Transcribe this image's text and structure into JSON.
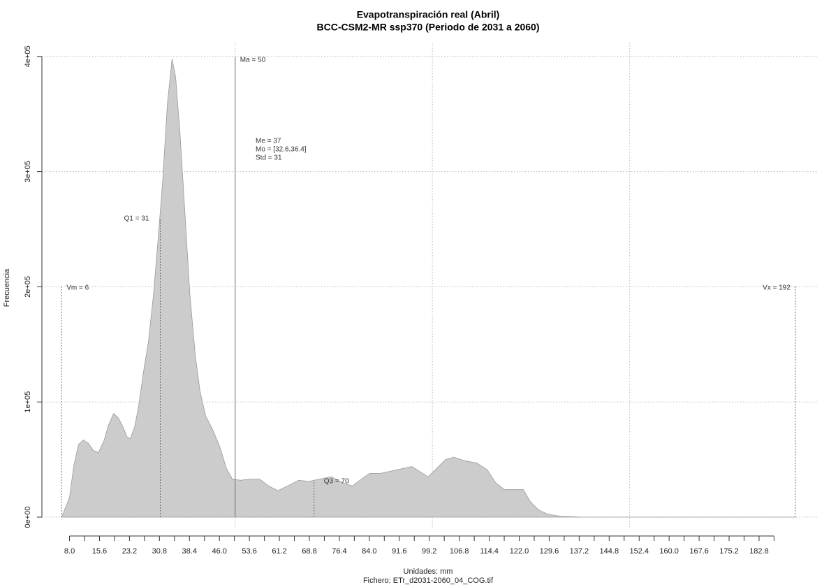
{
  "chart_data": {
    "type": "area",
    "title": "Evapotranspiración real (Abril)",
    "subtitle": "BCC-CSM2-MR ssp370 (Periodo de 2031 a 2060)",
    "xlabel": "Unidades: mm",
    "caption": "Fichero: ETr_d2031-2060_04_COG.tif",
    "ylabel": "Frecuencia",
    "x": [
      6,
      8,
      9.1,
      10.3,
      11.5,
      12.8,
      14,
      15.3,
      16.7,
      17.9,
      19.2,
      20.4,
      21.6,
      22.5,
      23.4,
      24.5,
      25.5,
      26.8,
      28,
      29.3,
      30.5,
      31.6,
      32.8,
      34,
      34.9,
      36,
      37.2,
      38.5,
      39.9,
      41.1,
      42.5,
      44.3,
      46.1,
      47.8,
      49.3,
      51.4,
      53.7,
      56.2,
      58.5,
      60.8,
      63.3,
      66.1,
      68.6,
      71.4,
      74.4,
      77.1,
      79.7,
      82,
      84.1,
      86.8,
      89.5,
      92.2,
      94.8,
      96.6,
      98.9,
      101,
      103.3,
      105.4,
      108.1,
      111.3,
      113.9,
      116,
      118.2,
      120.8,
      123,
      124.9,
      127,
      129.3,
      132.8,
      138.1,
      192
    ],
    "values": [
      0,
      17000,
      45000,
      63000,
      67000,
      64000,
      58000,
      56000,
      66000,
      80000,
      90000,
      86000,
      78000,
      70000,
      68000,
      78000,
      96000,
      127000,
      152000,
      194000,
      243000,
      291000,
      358000,
      398000,
      382000,
      334000,
      267000,
      194000,
      140000,
      109000,
      88000,
      76000,
      61000,
      42000,
      33000,
      32000,
      33000,
      33000,
      27000,
      23000,
      27000,
      32000,
      31000,
      33000,
      35000,
      30000,
      27000,
      33000,
      38000,
      38000,
      40000,
      42000,
      44000,
      40000,
      35000,
      42000,
      50000,
      52000,
      49000,
      47000,
      41000,
      30000,
      24000,
      24000,
      24000,
      13000,
      6000,
      2500,
      600,
      0,
      0
    ],
    "color": "#cccccc",
    "xlim": [
      1,
      197.5
    ],
    "ylim": [
      -10000,
      412000
    ],
    "xticks": [
      {
        "value": 8,
        "label": "8.0"
      },
      15.6,
      23.2,
      30.8,
      38.4,
      {
        "value": 46,
        "label": "46.0"
      },
      53.6,
      61.2,
      68.8,
      76.4,
      {
        "value": 84,
        "label": "84.0"
      },
      91.6,
      99.2,
      106.8,
      114.4,
      {
        "value": 122,
        "label": "122.0"
      },
      129.6,
      137.2,
      144.8,
      152.4,
      {
        "value": 160,
        "label": "160.0"
      },
      167.6,
      175.2,
      182.8
    ],
    "yticks": [
      {
        "value": 0,
        "label": "0e+00"
      },
      {
        "value": 100000,
        "label": "1e+05"
      },
      {
        "value": 200000,
        "label": "2e+05"
      },
      {
        "value": 300000,
        "label": "3e+05"
      },
      {
        "value": 400000,
        "label": "4e+05"
      }
    ],
    "xgrid": [
      50,
      100,
      150
    ],
    "grid": true,
    "annotations": [
      {
        "label": "Vm = 6",
        "value": 6
      },
      {
        "label": "Q1 = 31",
        "value": 31
      },
      {
        "label": "Ma = 50",
        "value": 50
      },
      {
        "label": "Q3 = 70",
        "value": 70
      },
      {
        "label": "Vx = 192",
        "value": 192
      }
    ],
    "stats": [
      "Me = 37",
      "Mo = [32.6,36.4]",
      "Std = 31"
    ]
  }
}
